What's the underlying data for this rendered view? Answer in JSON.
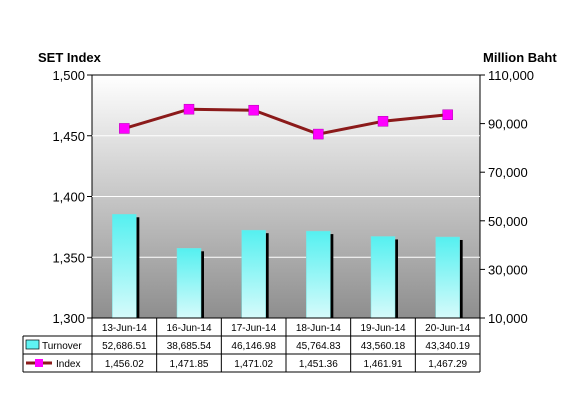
{
  "chart_data": {
    "type": "bar+line",
    "categories": [
      "13-Jun-14",
      "16-Jun-14",
      "17-Jun-14",
      "18-Jun-14",
      "19-Jun-14",
      "20-Jun-14"
    ],
    "left_axis": {
      "title": "SET Index",
      "range": [
        1300,
        1500
      ],
      "ticks": [
        "1,300",
        "1,350",
        "1,400",
        "1,450",
        "1,500"
      ],
      "tick_values": [
        1300,
        1350,
        1400,
        1450,
        1500
      ]
    },
    "right_axis": {
      "title": "Million Baht",
      "range": [
        10000,
        110000
      ],
      "ticks": [
        "10,000",
        "30,000",
        "50,000",
        "70,000",
        "90,000",
        "110,000"
      ],
      "tick_values": [
        10000,
        30000,
        50000,
        70000,
        90000,
        110000
      ]
    },
    "series": [
      {
        "name": "Turnover",
        "kind": "bar",
        "axis": "right",
        "values": [
          52686.51,
          38685.54,
          46146.98,
          45764.83,
          43560.18,
          43340.19
        ],
        "labels": [
          "52,686.51",
          "38,685.54",
          "46,146.98",
          "45,764.83",
          "43,560.18",
          "43,340.19"
        ],
        "color": "#5ff2f2"
      },
      {
        "name": "Index",
        "kind": "line",
        "axis": "left",
        "values": [
          1456.02,
          1471.85,
          1471.02,
          1451.36,
          1461.91,
          1467.29
        ],
        "labels": [
          "1,456.02",
          "1,471.85",
          "1,471.02",
          "1,451.36",
          "1,461.91",
          "1,467.29"
        ],
        "line_color": "#8b1a1a",
        "marker_color": "#ff00ff"
      }
    ],
    "grid": true,
    "legend": "data table below plot"
  }
}
